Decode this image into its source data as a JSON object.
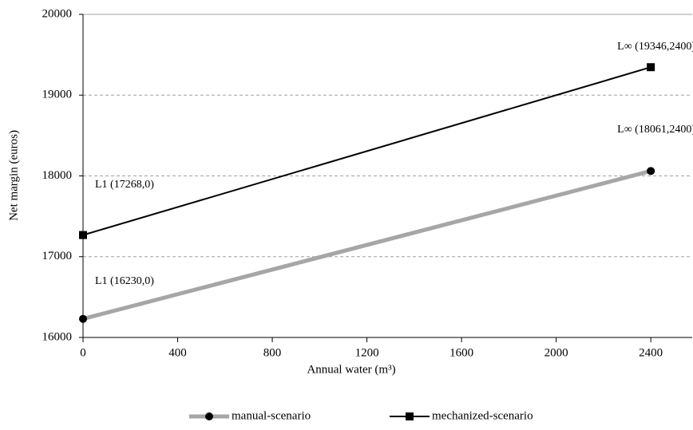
{
  "chart_data": {
    "type": "line",
    "x_label": "Annual water (m³)",
    "y_label": "Net margin  (euros)",
    "x": [
      0,
      2400
    ],
    "series": [
      {
        "name": "manual-scenario",
        "color": "#a6a6a6",
        "marker": "circle",
        "values": [
          16230,
          18061
        ]
      },
      {
        "name": "mechanized-scenario",
        "color": "#000000",
        "marker": "square",
        "values": [
          17268,
          19346
        ]
      }
    ],
    "annotations": [
      "L∞ (19346,2400)",
      "L∞ (18061,2400)",
      "L1 (17268,0)",
      "L1 (16230,0)"
    ],
    "xlim": [
      0,
      2575
    ],
    "xticks": [
      0,
      400,
      800,
      1200,
      1600,
      2000,
      2400
    ],
    "ylim": [
      16000,
      20000
    ],
    "yticks": [
      16000,
      17000,
      18000,
      19000,
      20000
    ],
    "grid": true,
    "legend": "bottom"
  }
}
